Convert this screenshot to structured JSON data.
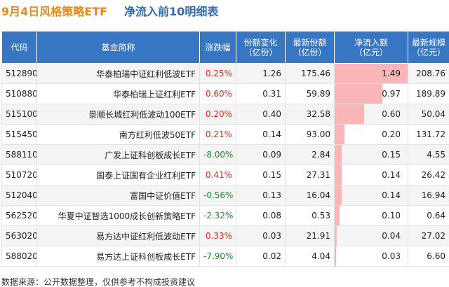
{
  "title": {
    "main": "9月4日风格策略ETF",
    "sub": "净流入前10明细表"
  },
  "table": {
    "headers": [
      {
        "lines": [
          "代码"
        ]
      },
      {
        "lines": [
          "基金简称"
        ]
      },
      {
        "lines": [
          "涨跌幅"
        ]
      },
      {
        "lines": [
          "份额变化",
          "（亿份）"
        ]
      },
      {
        "lines": [
          "最新份额",
          "（亿份）"
        ]
      },
      {
        "lines": [
          "净流入额",
          "（亿元）"
        ]
      },
      {
        "lines": [
          "最新规模",
          "（亿元）"
        ]
      }
    ],
    "inflow_max": 1.49,
    "rows": [
      {
        "code": "512890",
        "name": "华泰柏瑞中证红利低波ETF",
        "change": "0.25%",
        "direction": "up",
        "share_change": "1.26",
        "latest_share": "175.46",
        "inflow": "1.49",
        "inflow_value": 1.49,
        "scale": "208.76"
      },
      {
        "code": "510880",
        "name": "华泰柏瑞上证红利ETF",
        "change": "0.60%",
        "direction": "up",
        "share_change": "0.31",
        "latest_share": "59.89",
        "inflow": "0.97",
        "inflow_value": 0.97,
        "scale": "189.89"
      },
      {
        "code": "515100",
        "name": "景顺长城红利低波动100ETF",
        "change": "0.20%",
        "direction": "up",
        "share_change": "0.40",
        "latest_share": "32.58",
        "inflow": "0.60",
        "inflow_value": 0.6,
        "scale": "50.04"
      },
      {
        "code": "515450",
        "name": "南方红利低波50ETF",
        "change": "0.21%",
        "direction": "up",
        "share_change": "0.14",
        "latest_share": "93.00",
        "inflow": "0.20",
        "inflow_value": 0.2,
        "scale": "131.72"
      },
      {
        "code": "588110",
        "name": "广发上证科创板成长ETF",
        "change": "-8.00%",
        "direction": "down",
        "share_change": "0.09",
        "latest_share": "2.84",
        "inflow": "0.15",
        "inflow_value": 0.15,
        "scale": "4.55"
      },
      {
        "code": "510720",
        "name": "国泰上证国有企业红利ETF",
        "change": "0.41%",
        "direction": "up",
        "share_change": "0.15",
        "latest_share": "27.31",
        "inflow": "0.14",
        "inflow_value": 0.14,
        "scale": "26.42"
      },
      {
        "code": "512040",
        "name": "富国中证价值ETF",
        "change": "-0.56%",
        "direction": "down",
        "share_change": "0.13",
        "latest_share": "16.04",
        "inflow": "0.14",
        "inflow_value": 0.14,
        "scale": "16.94"
      },
      {
        "code": "562520",
        "name": "华夏中证智选1000成长创新策略ETF",
        "change": "-2.32%",
        "direction": "down",
        "share_change": "0.08",
        "latest_share": "0.53",
        "inflow": "0.10",
        "inflow_value": 0.1,
        "scale": "0.64"
      },
      {
        "code": "563020",
        "name": "易方达中证红利低波动ETF",
        "change": "0.33%",
        "direction": "up",
        "share_change": "0.03",
        "latest_share": "21.91",
        "inflow": "0.04",
        "inflow_value": 0.04,
        "scale": "27.02"
      },
      {
        "code": "588020",
        "name": "易方达上证科创板成长ETF",
        "change": "-7.90%",
        "direction": "down",
        "share_change": "0.02",
        "latest_share": "4.04",
        "inflow": "0.03",
        "inflow_value": 0.03,
        "scale": "6.60"
      }
    ]
  },
  "footer": {
    "source": "数据来源：公开数据整理，仅供参考不构成投资建议"
  },
  "colors": {
    "title_main": "#e6891b",
    "title_sub": "#2d68b3",
    "header_bg": "#3676c3",
    "positive": "#e0281c",
    "negative": "#1e8a2a",
    "inflow_bar": "#f8b6b9"
  }
}
